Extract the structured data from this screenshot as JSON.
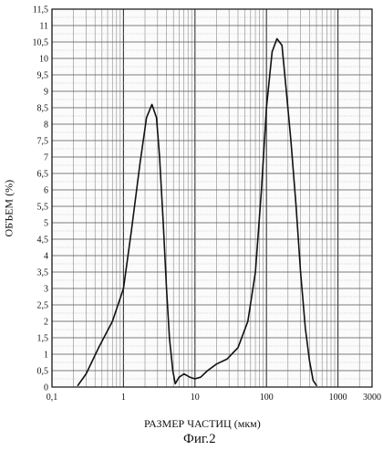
{
  "chart_data": {
    "type": "line",
    "ylabel": "ОБЪЕМ (%)",
    "xlabel": "РАЗМЕР ЧАСТИЦ (мкм)",
    "caption": "Фиг.2",
    "xscale": "log",
    "xlim": [
      0.1,
      3000
    ],
    "ylim": [
      0,
      11.5
    ],
    "grid": true,
    "x_ticks": [
      {
        "value": 0.1,
        "label": "0,1"
      },
      {
        "value": 1,
        "label": "1"
      },
      {
        "value": 10,
        "label": "10"
      },
      {
        "value": 100,
        "label": "100"
      },
      {
        "value": 1000,
        "label": "1000"
      },
      {
        "value": 3000,
        "label": "3000"
      }
    ],
    "y_ticks": [
      {
        "value": 0,
        "label": "0"
      },
      {
        "value": 0.5,
        "label": "0,5"
      },
      {
        "value": 1,
        "label": "1"
      },
      {
        "value": 1.5,
        "label": "1,5"
      },
      {
        "value": 2,
        "label": "2"
      },
      {
        "value": 2.5,
        "label": "2,5"
      },
      {
        "value": 3,
        "label": "3"
      },
      {
        "value": 3.5,
        "label": "3,5"
      },
      {
        "value": 4,
        "label": "4"
      },
      {
        "value": 4.5,
        "label": "4,5"
      },
      {
        "value": 5,
        "label": "5"
      },
      {
        "value": 5.5,
        "label": "5,5"
      },
      {
        "value": 6,
        "label": "6"
      },
      {
        "value": 6.5,
        "label": "6,5"
      },
      {
        "value": 7,
        "label": "7"
      },
      {
        "value": 7.5,
        "label": "7,5"
      },
      {
        "value": 8,
        "label": "8"
      },
      {
        "value": 8.5,
        "label": "8,5"
      },
      {
        "value": 9,
        "label": "9"
      },
      {
        "value": 9.5,
        "label": "9,5"
      },
      {
        "value": 10,
        "label": "10"
      },
      {
        "value": 10.5,
        "label": "10,5"
      },
      {
        "value": 11,
        "label": "11"
      },
      {
        "value": 11.5,
        "label": "11,5"
      }
    ],
    "series": [
      {
        "color": "#111111",
        "x": [
          0.23,
          0.3,
          0.45,
          0.7,
          1.0,
          1.3,
          1.7,
          2.1,
          2.5,
          2.9,
          3.2,
          3.6,
          4.0,
          4.4,
          4.9,
          5.3,
          6.0,
          7.0,
          8.5,
          10,
          12,
          15,
          20,
          28,
          40,
          55,
          70,
          85,
          100,
          120,
          140,
          165,
          190,
          220,
          260,
          300,
          350,
          400,
          450,
          500
        ],
        "y": [
          0.05,
          0.4,
          1.2,
          2.0,
          3.0,
          4.8,
          6.8,
          8.2,
          8.6,
          8.2,
          7.0,
          5.0,
          3.0,
          1.5,
          0.5,
          0.1,
          0.3,
          0.4,
          0.3,
          0.25,
          0.3,
          0.5,
          0.7,
          0.85,
          1.2,
          2.0,
          3.5,
          6.0,
          8.5,
          10.2,
          10.6,
          10.4,
          9.0,
          7.5,
          5.5,
          3.5,
          1.8,
          0.8,
          0.2,
          0.05
        ]
      }
    ]
  }
}
